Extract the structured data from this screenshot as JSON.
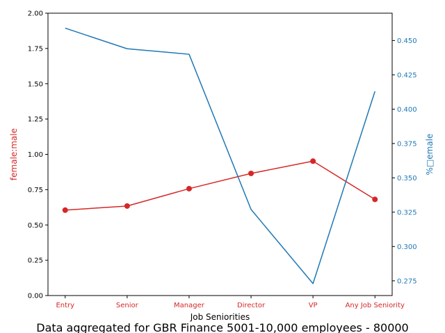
{
  "chart_data": {
    "type": "line",
    "categories": [
      "Entry",
      "Senior",
      "Manager",
      "Director",
      "VP",
      "Any Job Seniority"
    ],
    "xlabel": "Job Seniorities",
    "caption": "Data aggregated for GBR Finance 5001-10,000 employees - 80000",
    "left_axis": {
      "label": "female:male",
      "ylim": [
        0,
        2.0
      ],
      "ticks": [
        "0.00",
        "0.25",
        "0.50",
        "0.75",
        "1.00",
        "1.25",
        "1.50",
        "1.75",
        "2.00"
      ],
      "color": "#d62728"
    },
    "right_axis": {
      "label": "%□emale",
      "ylim": [
        0.2643,
        0.4699
      ],
      "ticks": [
        "0.275",
        "0.300",
        "0.325",
        "0.350",
        "0.375",
        "0.400",
        "0.425",
        "0.450"
      ],
      "color": "#1f77b4"
    },
    "series": [
      {
        "axis": "left",
        "values": [
          0.605,
          0.634,
          0.757,
          0.865,
          0.952,
          0.681
        ],
        "color": "#d62728",
        "markers": true
      },
      {
        "axis": "right",
        "values": [
          0.459,
          0.444,
          0.44,
          0.327,
          0.273,
          0.413
        ],
        "color": "#1f77b4",
        "markers": false
      }
    ]
  }
}
